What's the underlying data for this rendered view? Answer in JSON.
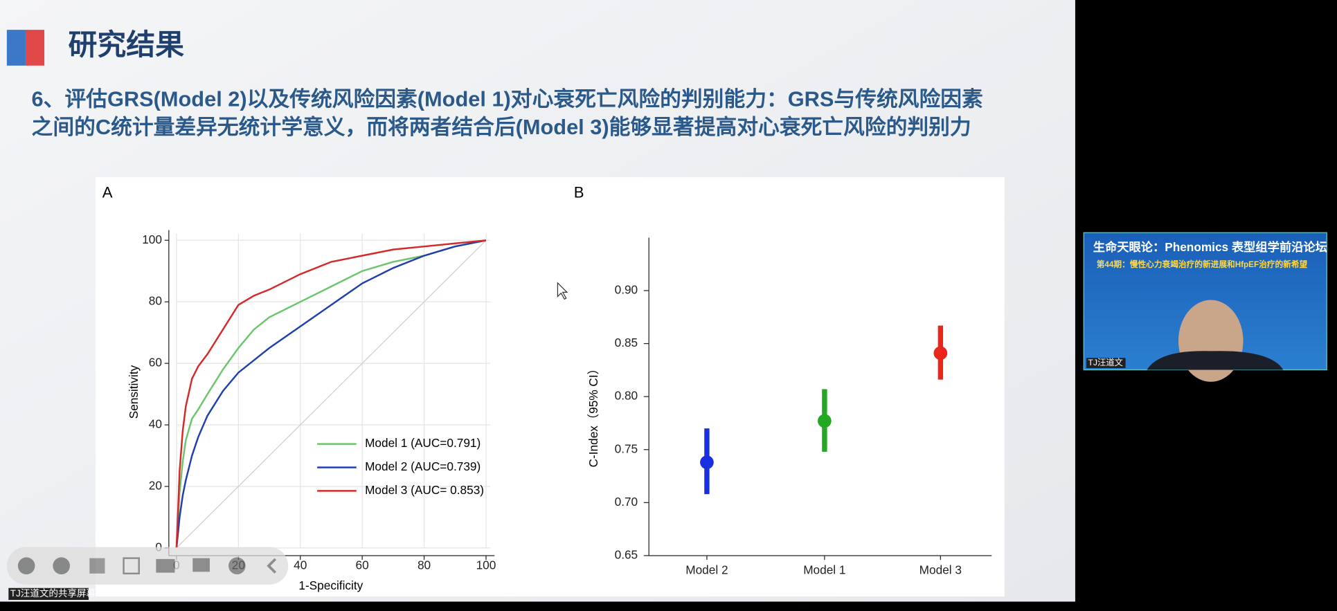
{
  "slide": {
    "title": "研究结果",
    "heading_lines": [
      "6、评估GRS(Model 2)以及传统风险因素(Model 1)对心衰死亡风险的判别能力：GRS与传统风险因素",
      "之间的C统计量差异无统计学意义，而将两者结合后(Model 3)能够显著提高对心衰死亡风险的判别力"
    ],
    "share_label": "TJ汪道文的共享屏幕"
  },
  "video": {
    "banner": "生命天眼论：Phenomics 表型组学前沿论坛",
    "subtitle": "第44期：慢性心力衰竭治疗的新进展和HfpEF治疗的新希望",
    "speaker": "TJ汪道文"
  },
  "chart_data": [
    {
      "type": "line",
      "panel": "A",
      "xlabel": "1-Specificity",
      "ylabel": "Sensitivity",
      "xlim": [
        0,
        100
      ],
      "ylim": [
        0,
        100
      ],
      "xticks": [
        0,
        20,
        40,
        60,
        80,
        100
      ],
      "yticks": [
        0,
        20,
        40,
        60,
        80,
        100
      ],
      "grid": true,
      "legend": "lower right",
      "series": [
        {
          "name": "Model 1 (AUC=0.791)",
          "color": "#6cc46c",
          "x": [
            0,
            1,
            2,
            3,
            5,
            7,
            10,
            15,
            20,
            25,
            30,
            40,
            50,
            60,
            70,
            80,
            90,
            100
          ],
          "values": [
            0,
            18,
            28,
            35,
            42,
            45,
            50,
            58,
            65,
            71,
            75,
            80,
            85,
            90,
            93,
            95,
            98,
            100
          ]
        },
        {
          "name": "Model 2 (AUC=0.739)",
          "color": "#1f3fae",
          "x": [
            0,
            1,
            2,
            3,
            5,
            7,
            10,
            15,
            20,
            25,
            30,
            40,
            50,
            60,
            70,
            80,
            90,
            100
          ],
          "values": [
            0,
            10,
            17,
            22,
            30,
            36,
            43,
            51,
            57,
            61,
            65,
            72,
            79,
            86,
            91,
            95,
            98,
            100
          ]
        },
        {
          "name": "Model 3 (AUC= 0.853)",
          "color": "#d42a2a",
          "x": [
            0,
            1,
            2,
            3,
            5,
            7,
            10,
            15,
            20,
            25,
            30,
            40,
            50,
            60,
            70,
            80,
            90,
            100
          ],
          "values": [
            0,
            25,
            38,
            46,
            55,
            59,
            63,
            71,
            79,
            82,
            84,
            89,
            93,
            95,
            97,
            98,
            99,
            100
          ]
        }
      ]
    },
    {
      "type": "errorbar",
      "panel": "B",
      "ylabel": "C-Index（95% CI）",
      "categories": [
        "Model 2",
        "Model 1",
        "Model 3"
      ],
      "values": [
        0.738,
        0.777,
        0.841
      ],
      "lower": [
        0.708,
        0.748,
        0.816
      ],
      "upper": [
        0.77,
        0.807,
        0.867
      ],
      "colors": [
        "#1a2fe0",
        "#22a822",
        "#e8261c"
      ],
      "ylim": [
        0.65,
        0.95
      ],
      "yticks": [
        0.65,
        {
          "value": 0.7,
          "label": "0.70"
        },
        0.75,
        {
          "value": 0.8,
          "label": "0.80"
        },
        0.85,
        {
          "value": 0.9,
          "label": "0.90"
        }
      ]
    }
  ]
}
